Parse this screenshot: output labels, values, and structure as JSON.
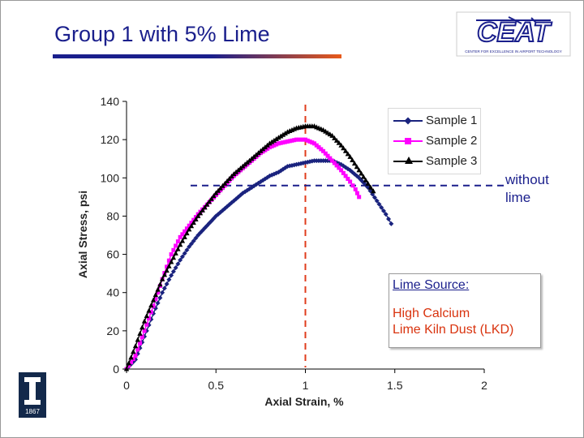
{
  "slide": {
    "title": "Group 1 with 5% Lime",
    "logo_text": "CEAT",
    "logo_subtext": "CENTER FOR EXCELLENCE IN AIRPORT TECHNOLOGY",
    "university_logo_year": "1867",
    "colors": {
      "title": "#1a1f8c",
      "accent": "#e85a1a"
    }
  },
  "annotation": {
    "line1": "without",
    "line2": "lime"
  },
  "note": {
    "heading": "Lime Source:",
    "line1": "High Calcium",
    "line2": "Lime Kiln Dust (LKD)"
  },
  "chart_data": {
    "type": "scatter",
    "xlabel": "Axial Strain, %",
    "ylabel": "Axial Stress, psi",
    "xlim": [
      0,
      2
    ],
    "ylim": [
      0,
      140
    ],
    "xticks": [
      0,
      0.5,
      1,
      1.5,
      2
    ],
    "xtick_labels": [
      "0",
      "0.5",
      "1",
      "1.5",
      "2"
    ],
    "yticks": [
      0,
      20,
      40,
      60,
      80,
      100,
      120,
      140
    ],
    "ytick_labels": [
      "0",
      "20",
      "40",
      "60",
      "80",
      "100",
      "120",
      "140"
    ],
    "legend_position": "top-right",
    "reference_lines": [
      {
        "orientation": "vertical",
        "x": 1.0,
        "color": "#e03c1c",
        "style": "dashed"
      },
      {
        "orientation": "horizontal",
        "y": 96,
        "color": "#1a1f8c",
        "style": "dashed"
      }
    ],
    "series": [
      {
        "name": "Sample 1",
        "color": "#1a237e",
        "marker": "diamond",
        "x": [
          0,
          0.05,
          0.1,
          0.15,
          0.2,
          0.25,
          0.3,
          0.35,
          0.4,
          0.45,
          0.5,
          0.55,
          0.6,
          0.65,
          0.7,
          0.75,
          0.8,
          0.85,
          0.9,
          0.95,
          1.0,
          1.05,
          1.1,
          1.15,
          1.2,
          1.25,
          1.3,
          1.35,
          1.4,
          1.45,
          1.48
        ],
        "y": [
          0,
          5,
          17,
          29,
          40,
          49,
          57,
          64,
          70,
          75,
          80,
          84,
          88,
          92,
          95,
          98,
          101,
          103,
          106,
          107,
          108,
          109,
          109,
          109,
          107,
          104,
          100,
          95,
          88,
          81,
          76
        ]
      },
      {
        "name": "Sample 2",
        "color": "#ff00ff",
        "marker": "square",
        "x": [
          0,
          0.05,
          0.1,
          0.15,
          0.2,
          0.25,
          0.3,
          0.35,
          0.4,
          0.45,
          0.5,
          0.55,
          0.6,
          0.65,
          0.7,
          0.75,
          0.8,
          0.85,
          0.9,
          0.95,
          1.0,
          1.05,
          1.1,
          1.15,
          1.2,
          1.25,
          1.28,
          1.3
        ],
        "y": [
          0,
          7,
          20,
          33,
          47,
          60,
          69,
          75,
          81,
          86,
          91,
          96,
          101,
          105,
          109,
          113,
          116,
          118,
          119,
          120,
          120,
          118,
          114,
          109,
          104,
          98,
          94,
          90
        ]
      },
      {
        "name": "Sample 3",
        "color": "#000000",
        "marker": "triangle",
        "x": [
          0,
          0.05,
          0.1,
          0.15,
          0.2,
          0.25,
          0.3,
          0.35,
          0.4,
          0.45,
          0.5,
          0.55,
          0.6,
          0.65,
          0.7,
          0.75,
          0.8,
          0.85,
          0.9,
          0.95,
          1.0,
          1.05,
          1.1,
          1.15,
          1.2,
          1.25,
          1.3,
          1.35,
          1.38
        ],
        "y": [
          0,
          12,
          25,
          36,
          47,
          56,
          65,
          73,
          80,
          86,
          92,
          97,
          102,
          106,
          110,
          114,
          118,
          121,
          124,
          126,
          127,
          127,
          125,
          122,
          117,
          111,
          104,
          97,
          93
        ]
      }
    ]
  }
}
